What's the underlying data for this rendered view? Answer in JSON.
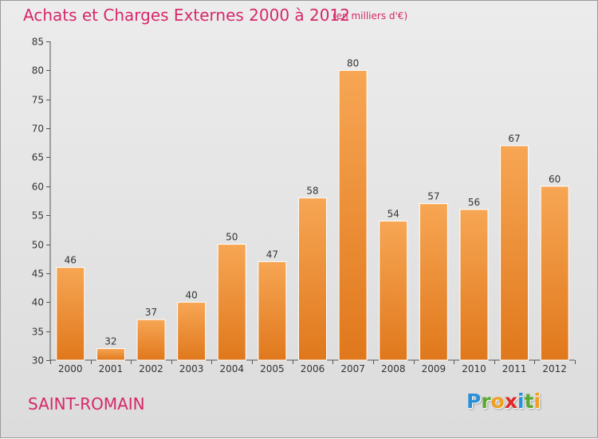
{
  "header": {
    "title": "Achats et Charges Externes 2000 à 2012",
    "subtitle": "(en milliers d'€)"
  },
  "footer": {
    "place": "SAINT-ROMAIN",
    "logo_letters": [
      {
        "char": "P",
        "color": "#2a8fd8"
      },
      {
        "char": "r",
        "color": "#5aa832"
      },
      {
        "char": "o",
        "color": "#f0a020"
      },
      {
        "char": "x",
        "color": "#e02828"
      },
      {
        "char": "i",
        "color": "#2a8fd8"
      },
      {
        "char": "t",
        "color": "#5aa832"
      },
      {
        "char": "i",
        "color": "#f0a020"
      }
    ]
  },
  "colors": {
    "accent": "#d6286a",
    "bar_light": "#f7a654",
    "bar_dark": "#e0781c"
  },
  "chart_data": {
    "type": "bar",
    "title": "Achats et Charges Externes 2000 à 2012",
    "subtitle": "(en milliers d'€)",
    "categories": [
      "2000",
      "2001",
      "2002",
      "2003",
      "2004",
      "2005",
      "2006",
      "2007",
      "2008",
      "2009",
      "2010",
      "2011",
      "2012"
    ],
    "values": [
      46,
      32,
      37,
      40,
      50,
      47,
      58,
      80,
      54,
      57,
      56,
      67,
      60
    ],
    "ylim": [
      30,
      85
    ],
    "yticks": [
      30,
      35,
      40,
      45,
      50,
      55,
      60,
      65,
      70,
      75,
      80,
      85
    ],
    "grid": false,
    "legend": "none"
  }
}
